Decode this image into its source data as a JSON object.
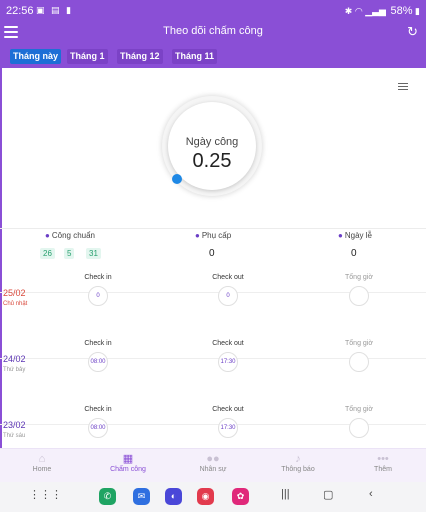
{
  "status_bar": {
    "time": "22:56",
    "icons_left": [
      "image-icon",
      "gallery-icon",
      "lock-icon"
    ],
    "battery": "58%"
  },
  "app_bar": {
    "title": "Theo dõi chấm công"
  },
  "tabs": [
    {
      "label": "Tháng này",
      "active": true
    },
    {
      "label": "Tháng 1",
      "active": false
    },
    {
      "label": "Tháng 12",
      "active": false
    },
    {
      "label": "Tháng 11",
      "active": false
    }
  ],
  "gauge": {
    "label": "Ngày công",
    "value": "0.25"
  },
  "summary": {
    "cong_chuan": {
      "label": "Công chuẩn",
      "chips": [
        "26",
        "5",
        "31"
      ]
    },
    "phu_cap": {
      "label": "Phụ cấp",
      "value": "0"
    },
    "ngay_le": {
      "label": "Ngày lễ",
      "value": "0"
    }
  },
  "column_labels": {
    "check_in": "Check in",
    "check_out": "Check out",
    "total": "Tổng giờ"
  },
  "days": [
    {
      "date": "25/02",
      "weekday": "Chủ nhật",
      "check_in": "0",
      "check_out": "0",
      "date_color": "#d94a3d",
      "weekday_color": "#d94a3d"
    },
    {
      "date": "24/02",
      "weekday": "Thứ bảy",
      "check_in": "08:00",
      "check_out": "17:30",
      "date_color": "#5b34b3",
      "weekday_color": "#999999"
    },
    {
      "date": "23/02",
      "weekday": "Thứ sáu",
      "check_in": "08:00",
      "check_out": "17:30",
      "date_color": "#5b34b3",
      "weekday_color": "#999999"
    }
  ],
  "bottom_nav": [
    {
      "label": "Home",
      "icon": "home-icon",
      "active": false
    },
    {
      "label": "Chấm công",
      "icon": "calendar-icon",
      "active": true
    },
    {
      "label": "Nhân sự",
      "icon": "people-icon",
      "active": false
    },
    {
      "label": "Thông báo",
      "icon": "bell-icon",
      "active": false
    },
    {
      "label": "Thêm",
      "icon": "more-icon",
      "active": false
    }
  ],
  "colors": {
    "primary": "#8a4fd6",
    "active_tab": "#1d6fd6",
    "gauge_dot": "#1e88e5",
    "chip_bg": "#e3f6ef",
    "chip_text": "#28a06f"
  }
}
